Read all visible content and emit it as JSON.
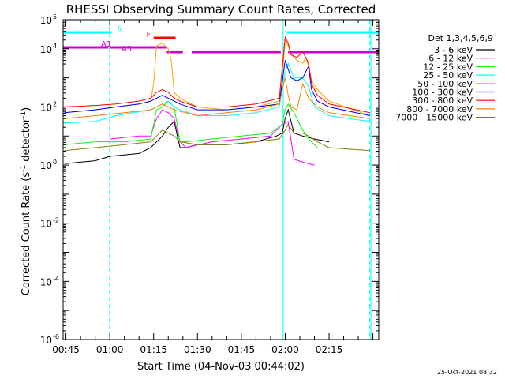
{
  "chart_data": {
    "type": "line",
    "title": "RHESSI Observing Summary Count Rates, Corrected",
    "xlabel": "Start Time (04-Nov-03 00:44:02)",
    "ylabel_main": "Corrected Count Rate (s",
    "ylabel_sup1": "-1",
    "ylabel_mid": " detector",
    "ylabel_sup2": "-1",
    "ylabel_end": ")",
    "date_stamp": "25-Oct-2021 08:32",
    "x_range_min": [
      44.03,
      152.0
    ],
    "y_scale": "log",
    "ylim_log10": [
      -6,
      5
    ],
    "x_ticks": [
      {
        "min": 45,
        "label": "00:45"
      },
      {
        "min": 60,
        "label": "01:00"
      },
      {
        "min": 75,
        "label": "01:15"
      },
      {
        "min": 90,
        "label": "01:30"
      },
      {
        "min": 105,
        "label": "01:45"
      },
      {
        "min": 120,
        "label": "02:00"
      },
      {
        "min": 135,
        "label": "02:15"
      }
    ],
    "y_ticks": [
      {
        "exp": -6,
        "base": "10",
        "sup": "-6"
      },
      {
        "exp": -4,
        "base": "10",
        "sup": "-4"
      },
      {
        "exp": -2,
        "base": "10",
        "sup": "-2"
      },
      {
        "exp": 0,
        "base": "10",
        "sup": "0"
      },
      {
        "exp": 2,
        "base": "10",
        "sup": "2"
      },
      {
        "exp": 4,
        "base": "10",
        "sup": "4"
      },
      {
        "exp": 5,
        "base": "10",
        "sup": "5"
      }
    ],
    "legend_title": "Det 1,3,4,5,6,9",
    "legend_placement": "top-right outside",
    "series": [
      {
        "name": "3 - 6 keV",
        "color": "#000000",
        "points": [
          [
            44.5,
            0.05
          ],
          [
            55,
            0.15
          ],
          [
            60,
            0.3
          ],
          [
            70,
            0.4
          ],
          [
            74,
            0.6
          ],
          [
            76,
            0.8
          ],
          [
            78,
            1.0
          ],
          [
            80,
            1.3
          ],
          [
            82,
            1.5
          ],
          [
            84,
            0.6
          ],
          [
            86,
            0.6
          ],
          [
            90,
            0.7
          ],
          [
            100,
            0.7
          ],
          [
            110,
            0.8
          ],
          [
            117,
            1.0
          ],
          [
            119,
            1.1
          ],
          [
            120,
            1.6
          ],
          [
            121,
            1.9
          ],
          [
            123,
            1.1
          ],
          [
            126,
            1.0
          ],
          [
            130,
            0.9
          ],
          [
            135,
            0.8
          ]
        ]
      },
      {
        "name": "6 - 12 keV",
        "color": "#ff00ff",
        "points": [
          [
            60,
            0.9
          ],
          [
            70,
            1.0
          ],
          [
            74,
            1.0
          ],
          [
            76,
            1.6
          ],
          [
            78,
            1.9
          ],
          [
            80,
            1.8
          ],
          [
            82,
            1.6
          ],
          [
            84,
            0.8
          ],
          [
            86,
            0.6
          ],
          [
            95,
            0.8
          ],
          [
            105,
            0.9
          ],
          [
            115,
            1.0
          ],
          [
            119,
            1.4
          ],
          [
            121,
            1.5
          ],
          [
            123,
            0.2
          ],
          [
            126,
            0.1
          ],
          [
            130,
            0.0
          ]
        ]
      },
      {
        "name": "12 - 25 keV",
        "color": "#00ff00",
        "points": [
          [
            44.5,
            0.7
          ],
          [
            55,
            0.8
          ],
          [
            65,
            0.8
          ],
          [
            74,
            0.9
          ],
          [
            76,
            1.9
          ],
          [
            78,
            2.0
          ],
          [
            80,
            2.2
          ],
          [
            82,
            2.0
          ],
          [
            84,
            0.8
          ],
          [
            86,
            0.8
          ],
          [
            95,
            0.9
          ],
          [
            105,
            1.0
          ],
          [
            115,
            1.1
          ],
          [
            119,
            1.4
          ],
          [
            120,
            1.9
          ],
          [
            121,
            2.1
          ],
          [
            123,
            1.8
          ],
          [
            126,
            1.2
          ],
          [
            128,
            0.9
          ],
          [
            131,
            0.6
          ]
        ]
      },
      {
        "name": "25 - 50 keV",
        "color": "#00ffff",
        "points": [
          [
            44.5,
            1.45
          ],
          [
            55,
            1.5
          ],
          [
            62,
            1.7
          ],
          [
            68,
            1.8
          ],
          [
            74,
            1.9
          ],
          [
            76,
            2.0
          ],
          [
            78,
            2.1
          ],
          [
            80,
            2.2
          ],
          [
            82,
            2.0
          ],
          [
            84,
            1.9
          ],
          [
            90,
            1.7
          ],
          [
            100,
            1.7
          ],
          [
            110,
            1.8
          ],
          [
            118,
            2.0
          ],
          [
            120,
            3.2
          ],
          [
            121,
            3.5
          ],
          [
            123,
            3.0
          ],
          [
            126,
            3.0
          ],
          [
            128,
            2.7
          ],
          [
            130,
            2.0
          ],
          [
            135,
            1.7
          ],
          [
            149,
            1.5
          ]
        ]
      },
      {
        "name": "50 - 100 keV",
        "color": "#ffa500",
        "points": [
          [
            44.5,
            1.8
          ],
          [
            55,
            1.9
          ],
          [
            62,
            2.0
          ],
          [
            70,
            2.1
          ],
          [
            74,
            2.2
          ],
          [
            75,
            2.8
          ],
          [
            76,
            4.1
          ],
          [
            78,
            4.2
          ],
          [
            80,
            4.0
          ],
          [
            81,
            3.6
          ],
          [
            82,
            2.5
          ],
          [
            84,
            2.3
          ],
          [
            90,
            2.0
          ],
          [
            100,
            1.9
          ],
          [
            110,
            2.0
          ],
          [
            118,
            2.2
          ],
          [
            119,
            3.0
          ],
          [
            120,
            4.3
          ],
          [
            121,
            4.1
          ],
          [
            122,
            3.8
          ],
          [
            124,
            3.6
          ],
          [
            126,
            3.5
          ],
          [
            127,
            3.7
          ],
          [
            128,
            3.4
          ],
          [
            129,
            2.9
          ],
          [
            131,
            2.6
          ],
          [
            135,
            2.2
          ],
          [
            149,
            1.7
          ]
        ]
      },
      {
        "name": "100 - 300 keV",
        "color": "#0000ff",
        "points": [
          [
            44.5,
            1.8
          ],
          [
            55,
            1.9
          ],
          [
            62,
            2.0
          ],
          [
            70,
            2.1
          ],
          [
            74,
            2.2
          ],
          [
            76,
            2.3
          ],
          [
            78,
            2.4
          ],
          [
            80,
            2.3
          ],
          [
            82,
            2.2
          ],
          [
            84,
            2.1
          ],
          [
            90,
            1.9
          ],
          [
            100,
            1.9
          ],
          [
            110,
            2.0
          ],
          [
            118,
            2.1
          ],
          [
            120,
            3.6
          ],
          [
            121,
            3.3
          ],
          [
            122,
            3.0
          ],
          [
            124,
            2.9
          ],
          [
            126,
            3.0
          ],
          [
            128,
            3.4
          ],
          [
            129,
            2.6
          ],
          [
            131,
            2.2
          ],
          [
            135,
            2.0
          ],
          [
            149,
            1.7
          ]
        ]
      },
      {
        "name": "300 - 800 keV",
        "color": "#ff0000",
        "points": [
          [
            44.5,
            2.0
          ],
          [
            55,
            2.05
          ],
          [
            62,
            2.1
          ],
          [
            70,
            2.2
          ],
          [
            74,
            2.3
          ],
          [
            76,
            2.5
          ],
          [
            78,
            2.6
          ],
          [
            80,
            2.5
          ],
          [
            82,
            2.3
          ],
          [
            84,
            2.2
          ],
          [
            90,
            2.0
          ],
          [
            100,
            2.0
          ],
          [
            110,
            2.1
          ],
          [
            118,
            2.3
          ],
          [
            120,
            4.4
          ],
          [
            121,
            4.2
          ],
          [
            122,
            3.8
          ],
          [
            124,
            3.7
          ],
          [
            126,
            3.9
          ],
          [
            128,
            3.5
          ],
          [
            129,
            2.8
          ],
          [
            131,
            2.4
          ],
          [
            135,
            2.1
          ],
          [
            149,
            1.8
          ]
        ]
      },
      {
        "name": "800 - 7000 keV",
        "color": "#ff8000",
        "points": [
          [
            44.5,
            1.6
          ],
          [
            55,
            1.7
          ],
          [
            65,
            1.8
          ],
          [
            74,
            1.9
          ],
          [
            78,
            2.1
          ],
          [
            82,
            1.9
          ],
          [
            90,
            1.7
          ],
          [
            100,
            1.8
          ],
          [
            110,
            1.9
          ],
          [
            118,
            2.1
          ],
          [
            119,
            2.6
          ],
          [
            120,
            3.0
          ],
          [
            121,
            2.4
          ],
          [
            122,
            2.0
          ],
          [
            124,
            1.9
          ],
          [
            126,
            2.8
          ],
          [
            128,
            2.3
          ],
          [
            131,
            2.0
          ],
          [
            135,
            1.8
          ],
          [
            149,
            1.6
          ]
        ]
      },
      {
        "name": "7000 - 15000 keV",
        "color": "#808000",
        "points": [
          [
            44.5,
            0.5
          ],
          [
            55,
            0.6
          ],
          [
            65,
            0.7
          ],
          [
            74,
            0.8
          ],
          [
            76,
            1.0
          ],
          [
            78,
            1.2
          ],
          [
            80,
            1.1
          ],
          [
            82,
            1.0
          ],
          [
            84,
            0.8
          ],
          [
            90,
            0.7
          ],
          [
            100,
            0.7
          ],
          [
            110,
            0.8
          ],
          [
            118,
            0.9
          ],
          [
            120,
            1.2
          ],
          [
            121,
            1.4
          ],
          [
            123,
            1.1
          ],
          [
            126,
            1.1
          ],
          [
            128,
            1.0
          ],
          [
            131,
            0.8
          ],
          [
            135,
            0.6
          ],
          [
            149,
            0.5
          ]
        ]
      }
    ],
    "states": [
      {
        "label": "N",
        "color": "#00ffff",
        "segments": [
          [
            44.03,
            60.6
          ],
          [
            120.5,
            152
          ]
        ],
        "label_at": 62.5
      },
      {
        "label": "F",
        "color": "#ff0000",
        "segments": [
          [
            75,
            82.5
          ]
        ],
        "label_at": 72.5
      },
      {
        "label": "A1",
        "color": "#cc00cc",
        "segments": [
          [
            44.03,
            59.5
          ],
          [
            60.2,
            79.5
          ]
        ],
        "label_at": 57
      },
      {
        "label": "A3",
        "color": "#cc00cc",
        "segments": [
          [
            79.5,
            85
          ],
          [
            88,
            118.5
          ],
          [
            121,
            152
          ]
        ],
        "label_at": 64
      }
    ],
    "dashed_lines_min": [
      59.9,
      148.9
    ],
    "solid_vlines_min": [
      44.03,
      119.3,
      149.3
    ]
  }
}
